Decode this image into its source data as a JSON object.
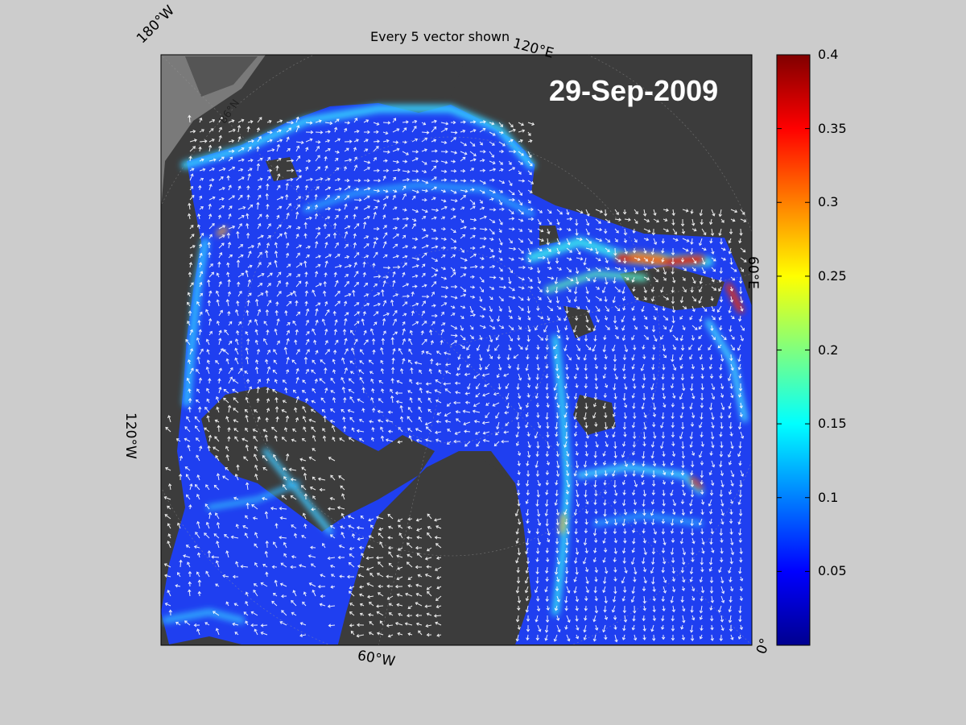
{
  "title": "Every 5 vector shown",
  "date": "29-Sep-2009",
  "map_labels": {
    "lon_180w": "180°W",
    "lon_120e": "120°E",
    "lon_60e": "60°E",
    "lon_120w": "120°W",
    "lon_60w": "60°W",
    "lon_0": "0°",
    "lat_86n": "86°N"
  },
  "colorbar": {
    "ticks": [
      "0.4",
      "0.35",
      "0.3",
      "0.25",
      "0.2",
      "0.15",
      "0.1",
      "0.05"
    ],
    "range": [
      0,
      0.4
    ],
    "colormap": "jet"
  },
  "colors": {
    "background": "#cccccc",
    "land": "#3c3c3c",
    "ocean": "#7a7a7a",
    "ice_low": "#1a3fe0",
    "arrows": "#ffffff"
  }
}
